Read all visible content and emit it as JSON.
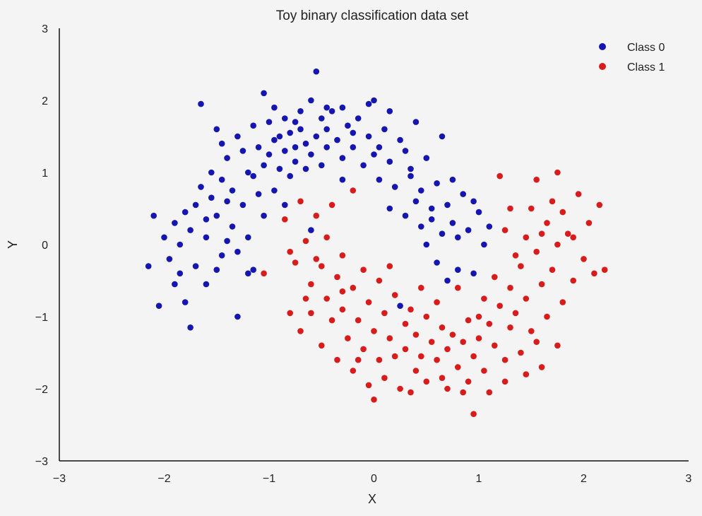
{
  "chart_data": {
    "type": "scatter",
    "title": "Toy binary classification data set",
    "xlabel": "X",
    "ylabel": "Y",
    "xlim": [
      -3,
      3
    ],
    "ylim": [
      -3,
      3
    ],
    "xticks": [
      "−3",
      "−2",
      "−1",
      "0",
      "1",
      "2",
      "3"
    ],
    "yticks": [
      "3",
      "2",
      "1",
      "0",
      "−1",
      "−2",
      "−3"
    ],
    "grid": false,
    "legend_position": "top-right",
    "series": [
      {
        "name": "Class 0",
        "color": "#1515b0",
        "points": [
          [
            -2.1,
            0.4
          ],
          [
            -2.05,
            -0.85
          ],
          [
            -2.0,
            0.1
          ],
          [
            -1.95,
            -0.2
          ],
          [
            -1.9,
            0.3
          ],
          [
            -1.9,
            -0.55
          ],
          [
            -1.85,
            0.0
          ],
          [
            -1.8,
            0.45
          ],
          [
            -1.8,
            -0.8
          ],
          [
            -1.75,
            -1.15
          ],
          [
            -1.75,
            0.2
          ],
          [
            -1.7,
            0.55
          ],
          [
            -1.7,
            -0.3
          ],
          [
            -1.65,
            1.95
          ],
          [
            -1.65,
            0.8
          ],
          [
            -1.6,
            -0.55
          ],
          [
            -1.6,
            0.1
          ],
          [
            -1.55,
            0.65
          ],
          [
            -1.55,
            1.0
          ],
          [
            -1.5,
            0.4
          ],
          [
            -1.5,
            -0.35
          ],
          [
            -1.45,
            1.4
          ],
          [
            -1.45,
            0.9
          ],
          [
            -1.45,
            -0.15
          ],
          [
            -1.4,
            0.6
          ],
          [
            -1.4,
            1.2
          ],
          [
            -1.35,
            0.25
          ],
          [
            -1.35,
            0.75
          ],
          [
            -1.3,
            1.5
          ],
          [
            -1.3,
            -0.1
          ],
          [
            -1.3,
            -1.0
          ],
          [
            -1.25,
            0.55
          ],
          [
            -1.25,
            1.3
          ],
          [
            -1.2,
            1.0
          ],
          [
            -1.2,
            0.1
          ],
          [
            -1.2,
            -0.4
          ],
          [
            -1.15,
            1.65
          ],
          [
            -1.15,
            -0.35
          ],
          [
            -1.1,
            1.35
          ],
          [
            -1.1,
            0.7
          ],
          [
            -1.05,
            2.1
          ],
          [
            -1.05,
            1.1
          ],
          [
            -1.05,
            0.4
          ],
          [
            -1.0,
            1.7
          ],
          [
            -1.0,
            1.25
          ],
          [
            -0.95,
            1.9
          ],
          [
            -0.95,
            0.75
          ],
          [
            -0.9,
            1.5
          ],
          [
            -0.9,
            1.05
          ],
          [
            -0.85,
            1.75
          ],
          [
            -0.85,
            1.3
          ],
          [
            -0.8,
            1.55
          ],
          [
            -0.8,
            0.95
          ],
          [
            -0.75,
            1.35
          ],
          [
            -0.75,
            1.15
          ],
          [
            -0.7,
            1.6
          ],
          [
            -0.7,
            1.85
          ],
          [
            -0.65,
            1.4
          ],
          [
            -0.65,
            1.05
          ],
          [
            -0.6,
            2.0
          ],
          [
            -0.6,
            1.25
          ],
          [
            -0.55,
            2.4
          ],
          [
            -0.55,
            1.5
          ],
          [
            -0.5,
            1.75
          ],
          [
            -0.5,
            1.1
          ],
          [
            -0.45,
            1.6
          ],
          [
            -0.45,
            1.35
          ],
          [
            -0.4,
            1.85
          ],
          [
            -0.35,
            1.45
          ],
          [
            -0.3,
            1.9
          ],
          [
            -0.3,
            1.2
          ],
          [
            -0.25,
            1.65
          ],
          [
            -0.2,
            1.35
          ],
          [
            -0.15,
            1.75
          ],
          [
            -0.1,
            1.1
          ],
          [
            -0.05,
            1.95
          ],
          [
            -0.05,
            1.5
          ],
          [
            0.0,
            2.0
          ],
          [
            0.0,
            1.25
          ],
          [
            0.05,
            1.35
          ],
          [
            0.05,
            0.9
          ],
          [
            0.1,
            1.6
          ],
          [
            0.15,
            1.15
          ],
          [
            0.2,
            0.8
          ],
          [
            0.25,
            1.45
          ],
          [
            0.3,
            1.3
          ],
          [
            0.3,
            0.4
          ],
          [
            0.35,
            0.95
          ],
          [
            0.4,
            0.6
          ],
          [
            0.4,
            1.7
          ],
          [
            0.45,
            0.25
          ],
          [
            0.45,
            0.75
          ],
          [
            0.5,
            1.2
          ],
          [
            0.5,
            0.0
          ],
          [
            0.55,
            0.5
          ],
          [
            0.6,
            0.85
          ],
          [
            0.6,
            -0.25
          ],
          [
            0.65,
            1.5
          ],
          [
            0.65,
            0.15
          ],
          [
            0.7,
            0.55
          ],
          [
            0.7,
            -0.5
          ],
          [
            0.75,
            0.3
          ],
          [
            0.8,
            0.1
          ],
          [
            0.8,
            -0.35
          ],
          [
            0.85,
            0.7
          ],
          [
            0.9,
            0.2
          ],
          [
            0.95,
            -0.4
          ],
          [
            1.0,
            0.45
          ],
          [
            1.05,
            0.0
          ],
          [
            1.1,
            0.25
          ],
          [
            -2.15,
            -0.3
          ],
          [
            -1.85,
            -0.4
          ],
          [
            -1.6,
            0.35
          ],
          [
            -1.4,
            0.05
          ],
          [
            -1.15,
            0.95
          ],
          [
            -0.95,
            1.45
          ],
          [
            -0.75,
            1.7
          ],
          [
            -0.45,
            1.9
          ],
          [
            -0.2,
            1.55
          ],
          [
            0.15,
            1.85
          ],
          [
            0.35,
            1.05
          ],
          [
            0.55,
            0.35
          ],
          [
            0.75,
            0.9
          ],
          [
            0.95,
            0.6
          ],
          [
            0.25,
            -0.85
          ],
          [
            -0.6,
            0.2
          ],
          [
            -0.3,
            0.9
          ],
          [
            0.15,
            0.5
          ],
          [
            -0.85,
            0.55
          ],
          [
            -1.5,
            1.6
          ]
        ]
      },
      {
        "name": "Class 1",
        "color": "#d81c1c",
        "points": [
          [
            -1.05,
            -0.4
          ],
          [
            -0.85,
            0.35
          ],
          [
            -0.8,
            -0.1
          ],
          [
            -0.75,
            -0.25
          ],
          [
            -0.7,
            0.6
          ],
          [
            -0.7,
            -1.2
          ],
          [
            -0.65,
            0.05
          ],
          [
            -0.6,
            -0.55
          ],
          [
            -0.6,
            -0.95
          ],
          [
            -0.55,
            0.4
          ],
          [
            -0.5,
            -0.3
          ],
          [
            -0.5,
            -1.4
          ],
          [
            -0.45,
            0.1
          ],
          [
            -0.45,
            -0.75
          ],
          [
            -0.4,
            -1.05
          ],
          [
            -0.4,
            0.55
          ],
          [
            -0.35,
            -0.45
          ],
          [
            -0.35,
            -1.6
          ],
          [
            -0.3,
            -0.9
          ],
          [
            -0.3,
            -0.15
          ],
          [
            -0.25,
            -1.3
          ],
          [
            -0.2,
            -0.6
          ],
          [
            -0.2,
            -1.75
          ],
          [
            -0.15,
            -1.05
          ],
          [
            -0.1,
            -0.35
          ],
          [
            -0.1,
            -1.45
          ],
          [
            -0.05,
            -0.8
          ],
          [
            0.0,
            -1.2
          ],
          [
            0.0,
            -2.15
          ],
          [
            0.05,
            -1.6
          ],
          [
            0.05,
            -0.5
          ],
          [
            0.1,
            -0.95
          ],
          [
            0.1,
            -1.85
          ],
          [
            0.15,
            -1.3
          ],
          [
            0.2,
            -0.7
          ],
          [
            0.2,
            -1.55
          ],
          [
            0.25,
            -2.0
          ],
          [
            0.3,
            -1.1
          ],
          [
            0.3,
            -1.45
          ],
          [
            0.35,
            -0.9
          ],
          [
            0.4,
            -1.75
          ],
          [
            0.4,
            -1.25
          ],
          [
            0.45,
            -1.55
          ],
          [
            0.5,
            -1.0
          ],
          [
            0.5,
            -1.9
          ],
          [
            0.55,
            -1.35
          ],
          [
            0.6,
            -1.6
          ],
          [
            0.65,
            -1.15
          ],
          [
            0.7,
            -1.45
          ],
          [
            0.7,
            -2.0
          ],
          [
            0.75,
            -1.25
          ],
          [
            0.8,
            -1.7
          ],
          [
            0.85,
            -1.35
          ],
          [
            0.9,
            -1.9
          ],
          [
            0.95,
            -1.55
          ],
          [
            0.95,
            -2.35
          ],
          [
            1.0,
            -1.3
          ],
          [
            1.05,
            -1.75
          ],
          [
            1.1,
            -1.1
          ],
          [
            1.1,
            -2.05
          ],
          [
            1.15,
            -1.4
          ],
          [
            1.2,
            -0.85
          ],
          [
            1.25,
            -1.6
          ],
          [
            1.3,
            -0.6
          ],
          [
            1.3,
            -1.15
          ],
          [
            1.35,
            -0.95
          ],
          [
            1.4,
            -0.3
          ],
          [
            1.4,
            -1.5
          ],
          [
            1.45,
            0.1
          ],
          [
            1.45,
            -0.75
          ],
          [
            1.5,
            0.5
          ],
          [
            1.5,
            -1.2
          ],
          [
            1.55,
            -0.1
          ],
          [
            1.55,
            0.9
          ],
          [
            1.6,
            -0.55
          ],
          [
            1.6,
            -1.7
          ],
          [
            1.65,
            0.3
          ],
          [
            1.65,
            -1.0
          ],
          [
            1.7,
            0.6
          ],
          [
            1.7,
            -0.35
          ],
          [
            1.75,
            1.0
          ],
          [
            1.75,
            0.0
          ],
          [
            1.8,
            -0.8
          ],
          [
            1.8,
            0.45
          ],
          [
            1.85,
            0.15
          ],
          [
            1.9,
            -0.5
          ],
          [
            1.95,
            0.7
          ],
          [
            2.0,
            -0.2
          ],
          [
            2.05,
            0.3
          ],
          [
            2.1,
            -0.4
          ],
          [
            2.15,
            0.55
          ],
          [
            2.2,
            -0.35
          ],
          [
            1.2,
            0.95
          ],
          [
            1.3,
            0.5
          ],
          [
            1.25,
            0.2
          ],
          [
            1.35,
            -0.15
          ],
          [
            1.15,
            -0.45
          ],
          [
            1.05,
            -0.75
          ],
          [
            0.9,
            -1.05
          ],
          [
            0.8,
            -0.6
          ],
          [
            -0.55,
            -0.2
          ],
          [
            -0.3,
            -0.65
          ],
          [
            -0.15,
            -1.6
          ],
          [
            0.15,
            -0.3
          ],
          [
            0.35,
            -2.05
          ],
          [
            0.6,
            -0.8
          ],
          [
            0.85,
            -2.05
          ],
          [
            1.0,
            -1.0
          ],
          [
            1.25,
            -1.9
          ],
          [
            1.45,
            -1.8
          ],
          [
            1.6,
            0.15
          ],
          [
            1.75,
            -1.4
          ],
          [
            1.9,
            0.1
          ],
          [
            -0.2,
            0.75
          ],
          [
            -0.65,
            -0.75
          ],
          [
            -0.8,
            -0.95
          ],
          [
            -0.05,
            -1.95
          ],
          [
            0.45,
            -0.6
          ],
          [
            0.65,
            -1.85
          ],
          [
            1.55,
            -1.35
          ]
        ]
      }
    ]
  }
}
